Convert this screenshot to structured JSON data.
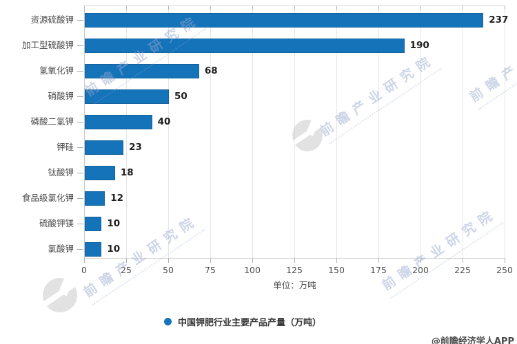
{
  "chart_data": {
    "type": "bar",
    "orientation": "horizontal",
    "categories": [
      "资源硫酸钾",
      "加工型硫酸钾",
      "氢氧化钾",
      "硝酸钾",
      "磷酸二氢钾",
      "钾硅",
      "钛酸钾",
      "食品级氯化钾",
      "硫酸钾镁",
      "氯酸钾"
    ],
    "values": [
      237,
      190,
      68,
      50,
      40,
      23,
      18,
      12,
      10,
      10
    ],
    "xlabel": "单位：万吨",
    "xlim": [
      0,
      250
    ],
    "xticks": [
      0,
      25,
      50,
      75,
      100,
      125,
      150,
      175,
      200,
      225,
      250
    ],
    "grid": true,
    "legend_label": "中国钾肥行业主要产品产量（万吨）",
    "legend_position": "bottom",
    "bar_color": "#1573ba"
  },
  "watermark": {
    "text": "前瞻产业研究院"
  },
  "credit": "@前瞻经济学人APP",
  "colors": {
    "bar": "#1573ba",
    "grid": "#e6e6e6",
    "axis": "#c9c9c9",
    "value_text": "#1f1f1f",
    "label_text": "#4a4a4a",
    "watermark": "#96a8ce"
  }
}
